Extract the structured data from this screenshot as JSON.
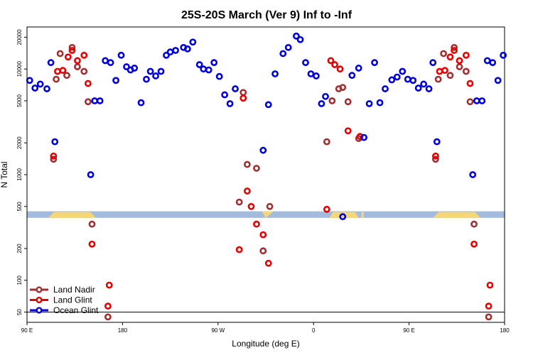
{
  "chart_data": {
    "type": "scatter",
    "title": "25S-20S March (Ver 9)   Inf to -Inf",
    "xlabel": "Longitude (deg E)",
    "ylabel": "N Total",
    "y_scale": "log",
    "xlim": [
      0,
      360
    ],
    "ylim": [
      40,
      25000
    ],
    "x_ticks": [
      {
        "value": 0,
        "label": "90 E"
      },
      {
        "value": 72,
        "label": "180"
      },
      {
        "value": 144,
        "label": "90 W"
      },
      {
        "value": 216,
        "label": "0"
      },
      {
        "value": 288,
        "label": "90 E"
      },
      {
        "value": 360,
        "label": "180"
      }
    ],
    "y_ticks": [
      {
        "value": 50,
        "label": "50"
      },
      {
        "value": 100,
        "label": "100"
      },
      {
        "value": 200,
        "label": "200"
      },
      {
        "value": 500,
        "label": "500"
      },
      {
        "value": 1000,
        "label": "1000"
      },
      {
        "value": 2000,
        "label": "2000"
      },
      {
        "value": 5000,
        "label": "5000"
      },
      {
        "value": 10000,
        "label": "10000"
      },
      {
        "value": 20000,
        "label": "20000"
      }
    ],
    "reference_line": 50,
    "legend_position": "bottom-left",
    "map_band": {
      "y_top": 450,
      "y_bottom": 390,
      "ocean_color": "#a3bbdc",
      "land_color": "#f5d77a"
    },
    "series": [
      {
        "name": "Land Nadir",
        "color": "#a03030",
        "points": [
          [
            20,
            1400
          ],
          [
            22,
            8000
          ],
          [
            25,
            14000
          ],
          [
            30,
            8700
          ],
          [
            34,
            16000
          ],
          [
            38,
            10500
          ],
          [
            43,
            9500
          ],
          [
            46,
            4900
          ],
          [
            49,
            340
          ],
          [
            61,
            45
          ],
          [
            160,
            550
          ],
          [
            163,
            6000
          ],
          [
            166,
            1250
          ],
          [
            173,
            1150
          ],
          [
            178,
            190
          ],
          [
            183,
            500
          ],
          [
            226,
            2050
          ],
          [
            230,
            5000
          ],
          [
            235,
            6500
          ],
          [
            238,
            6700
          ],
          [
            242,
            4900
          ],
          [
            250,
            2200
          ],
          [
            308,
            1400
          ],
          [
            310,
            8000
          ],
          [
            314,
            14000
          ],
          [
            319,
            8700
          ],
          [
            322,
            16000
          ],
          [
            326,
            10500
          ],
          [
            331,
            9500
          ],
          [
            334,
            4900
          ],
          [
            337,
            340
          ],
          [
            348,
            45
          ]
        ]
      },
      {
        "name": "Land Glint",
        "color": "#e80000",
        "points": [
          [
            20,
            1500
          ],
          [
            23,
            9500
          ],
          [
            27,
            9700
          ],
          [
            31,
            13000
          ],
          [
            34,
            15000
          ],
          [
            38,
            12000
          ],
          [
            43,
            13500
          ],
          [
            46,
            7300
          ],
          [
            49,
            220
          ],
          [
            61,
            57
          ],
          [
            62,
            90
          ],
          [
            160,
            195
          ],
          [
            163,
            5300
          ],
          [
            166,
            700
          ],
          [
            169,
            500
          ],
          [
            173,
            340
          ],
          [
            178,
            270
          ],
          [
            182,
            145
          ],
          [
            226,
            470
          ],
          [
            229,
            12000
          ],
          [
            232,
            11000
          ],
          [
            236,
            10000
          ],
          [
            242,
            2600
          ],
          [
            251,
            2300
          ],
          [
            308,
            1500
          ],
          [
            311,
            9500
          ],
          [
            315,
            9700
          ],
          [
            319,
            13000
          ],
          [
            322,
            15000
          ],
          [
            326,
            12000
          ],
          [
            331,
            13500
          ],
          [
            334,
            7300
          ],
          [
            337,
            220
          ],
          [
            348,
            57
          ],
          [
            349,
            90
          ]
        ]
      },
      {
        "name": "Ocean Glint",
        "color": "#0000dd",
        "points": [
          [
            2,
            7800
          ],
          [
            6,
            6600
          ],
          [
            10,
            7200
          ],
          [
            15,
            6500
          ],
          [
            18,
            11500
          ],
          [
            21,
            2050
          ],
          [
            48,
            1000
          ],
          [
            51,
            5000
          ],
          [
            55,
            5000
          ],
          [
            59,
            12000
          ],
          [
            63,
            11500
          ],
          [
            67,
            7800
          ],
          [
            71,
            13500
          ],
          [
            75,
            10500
          ],
          [
            78,
            9800
          ],
          [
            81,
            10200
          ],
          [
            86,
            4800
          ],
          [
            90,
            8000
          ],
          [
            93,
            9500
          ],
          [
            97,
            8600
          ],
          [
            101,
            9500
          ],
          [
            105,
            13500
          ],
          [
            108,
            14500
          ],
          [
            112,
            15000
          ],
          [
            118,
            16000
          ],
          [
            121,
            15500
          ],
          [
            125,
            18000
          ],
          [
            130,
            11000
          ],
          [
            133,
            10000
          ],
          [
            137,
            9800
          ],
          [
            141,
            11500
          ],
          [
            145,
            8500
          ],
          [
            149,
            5700
          ],
          [
            153,
            4700
          ],
          [
            157,
            6500
          ],
          [
            178,
            1700
          ],
          [
            182,
            4600
          ],
          [
            187,
            9000
          ],
          [
            193,
            14000
          ],
          [
            197,
            16000
          ],
          [
            203,
            20500
          ],
          [
            206,
            19000
          ],
          [
            210,
            11500
          ],
          [
            214,
            9000
          ],
          [
            218,
            8600
          ],
          [
            222,
            4700
          ],
          [
            225,
            5500
          ],
          [
            238,
            400
          ],
          [
            245,
            8700
          ],
          [
            250,
            10200
          ],
          [
            254,
            2250
          ],
          [
            258,
            4700
          ],
          [
            262,
            11500
          ],
          [
            266,
            4800
          ],
          [
            270,
            6500
          ],
          [
            275,
            7900
          ],
          [
            279,
            8400
          ],
          [
            283,
            9500
          ],
          [
            287,
            8000
          ],
          [
            291,
            7800
          ],
          [
            295,
            6600
          ],
          [
            299,
            7200
          ],
          [
            303,
            6500
          ],
          [
            306,
            11500
          ],
          [
            309,
            2050
          ],
          [
            336,
            1000
          ],
          [
            339,
            5000
          ],
          [
            343,
            5000
          ],
          [
            347,
            12000
          ],
          [
            351,
            11500
          ],
          [
            355,
            7800
          ],
          [
            359,
            13500
          ]
        ]
      }
    ]
  }
}
